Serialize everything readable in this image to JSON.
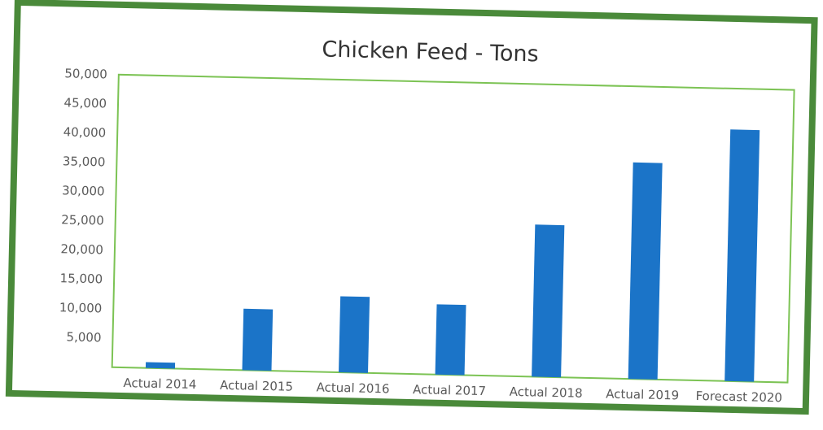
{
  "colors": {
    "frame": "#4a8a3a",
    "plot_border": "#7cc354",
    "bar": "#1b74c8",
    "text": "#595959",
    "title": "#333333"
  },
  "chart_data": {
    "type": "bar",
    "title": "Chicken Feed - Tons",
    "xlabel": "",
    "ylabel": "",
    "ylim": [
      0,
      50000
    ],
    "grid": false,
    "yticks": [
      {
        "value": 5000,
        "label": "5,000"
      },
      {
        "value": 10000,
        "label": "10,000"
      },
      {
        "value": 15000,
        "label": "15,000"
      },
      {
        "value": 20000,
        "label": "20,000"
      },
      {
        "value": 25000,
        "label": "25,000"
      },
      {
        "value": 30000,
        "label": "30,000"
      },
      {
        "value": 35000,
        "label": "35,000"
      },
      {
        "value": 40000,
        "label": "40,000"
      },
      {
        "value": 45000,
        "label": "45,000"
      },
      {
        "value": 50000,
        "label": "50,000"
      }
    ],
    "categories": [
      "Actual 2014",
      "Actual 2015",
      "Actual 2016",
      "Actual 2017",
      "Actual 2018",
      "Actual 2019",
      "Forecast 2020"
    ],
    "values": [
      1000,
      10500,
      13000,
      12000,
      26000,
      37000,
      43000
    ]
  }
}
